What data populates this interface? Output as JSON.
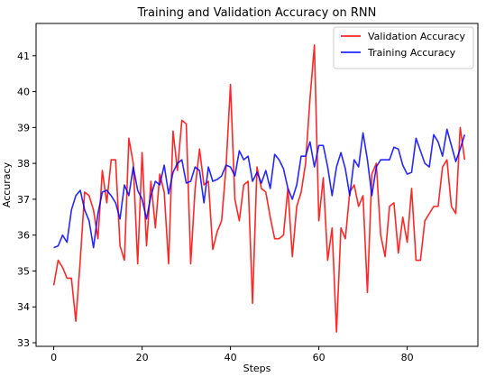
{
  "chart_data": {
    "type": "line",
    "title": "Training and Validation Accuracy on RNN",
    "xlabel": "Steps",
    "ylabel": "Accuracy",
    "xlim": [
      -4,
      96
    ],
    "ylim": [
      32.9,
      41.9
    ],
    "xticks": [
      0,
      20,
      40,
      60,
      80
    ],
    "yticks": [
      33,
      34,
      35,
      36,
      37,
      38,
      39,
      40,
      41
    ],
    "legend_position": "top-right",
    "grid": false,
    "series": [
      {
        "name": "Validation Accuracy",
        "color": "#ff0000",
        "values": [
          34.6,
          35.3,
          35.1,
          34.8,
          34.8,
          33.6,
          35.3,
          37.2,
          37.1,
          36.7,
          35.9,
          37.8,
          36.9,
          38.1,
          38.1,
          35.7,
          35.3,
          38.7,
          38.0,
          35.2,
          38.3,
          35.7,
          37.5,
          36.2,
          37.7,
          37.2,
          35.2,
          38.9,
          37.8,
          39.2,
          39.1,
          35.2,
          37.3,
          38.4,
          37.4,
          37.5,
          35.6,
          36.1,
          36.4,
          37.9,
          40.2,
          37.0,
          36.4,
          37.4,
          37.5,
          34.1,
          37.9,
          37.3,
          37.2,
          36.5,
          35.9,
          35.9,
          36.0,
          37.3,
          35.4,
          36.8,
          37.2,
          38.0,
          39.8,
          41.3,
          36.4,
          37.6,
          35.3,
          36.2,
          33.3,
          36.2,
          35.9,
          37.2,
          37.4,
          36.8,
          37.1,
          34.4,
          37.7,
          38.0,
          36.0,
          35.4,
          36.8,
          36.9,
          35.5,
          36.5,
          35.8,
          37.3,
          35.3,
          35.3,
          36.4,
          36.6,
          36.8,
          36.8,
          37.9,
          38.1,
          36.8,
          36.6,
          39.0,
          38.1
        ]
      },
      {
        "name": "Training Accuracy",
        "color": "#0000ff",
        "values": [
          35.65,
          35.7,
          36.0,
          35.8,
          36.7,
          37.1,
          37.25,
          36.7,
          36.4,
          35.65,
          36.6,
          37.2,
          37.25,
          37.1,
          36.9,
          36.45,
          37.4,
          37.1,
          37.9,
          37.25,
          37.0,
          36.45,
          37.1,
          37.5,
          37.4,
          37.95,
          37.15,
          37.75,
          38.0,
          38.1,
          37.45,
          37.5,
          37.9,
          37.8,
          36.9,
          37.9,
          37.5,
          37.55,
          37.65,
          37.95,
          37.9,
          37.65,
          38.35,
          38.1,
          38.2,
          37.5,
          37.75,
          37.45,
          37.8,
          37.3,
          38.25,
          38.1,
          37.85,
          37.3,
          37.0,
          37.4,
          38.2,
          38.2,
          38.6,
          37.9,
          38.5,
          38.5,
          37.9,
          37.1,
          37.9,
          38.3,
          37.85,
          37.1,
          38.1,
          37.9,
          38.85,
          38.1,
          37.1,
          37.9,
          38.1,
          38.1,
          38.1,
          38.45,
          38.4,
          37.95,
          37.7,
          37.75,
          38.7,
          38.35,
          38.0,
          37.9,
          38.8,
          38.6,
          38.2,
          38.95,
          38.5,
          38.05,
          38.4,
          38.8
        ]
      }
    ]
  }
}
